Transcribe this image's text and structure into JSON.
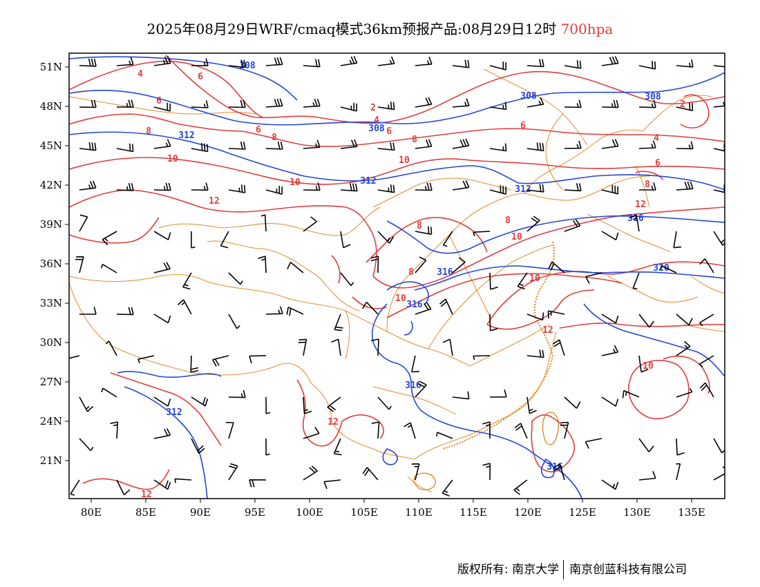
{
  "title": {
    "prefix": "2025年08月29日WRF/cmaq模式36km预报产品:08月29日12时",
    "level": "700hpa",
    "level_color": "#e03c3c"
  },
  "axes": {
    "lat_labels": [
      "51N",
      "48N",
      "45N",
      "42N",
      "39N",
      "36N",
      "33N",
      "30N",
      "27N",
      "24N",
      "21N"
    ],
    "lon_labels": [
      "80E",
      "85E",
      "90E",
      "95E",
      "100E",
      "105E",
      "110E",
      "115E",
      "120E",
      "125E",
      "130E",
      "135E"
    ]
  },
  "colors": {
    "temperature": "#e03c3c",
    "geopotential": "#2244dd",
    "borders": "#e08a2a",
    "wind": "#000000"
  },
  "contour_labels": {
    "geopotential": [
      "308",
      "308",
      "308",
      "308",
      "312",
      "312",
      "312",
      "316",
      "316",
      "316",
      "316",
      "320",
      "312",
      "316"
    ],
    "temperature": [
      "4",
      "6",
      "6",
      "8",
      "6",
      "8",
      "8",
      "2",
      "4",
      "6",
      "10",
      "12",
      "10",
      "10",
      "8",
      "10",
      "8",
      "2",
      "4",
      "6",
      "8",
      "10",
      "12",
      "12",
      "10",
      "12",
      "10",
      "12",
      "8",
      "6"
    ]
  },
  "copyright": {
    "left": "版权所有: 南京大学",
    "right": "南京创蓝科技有限公司"
  }
}
